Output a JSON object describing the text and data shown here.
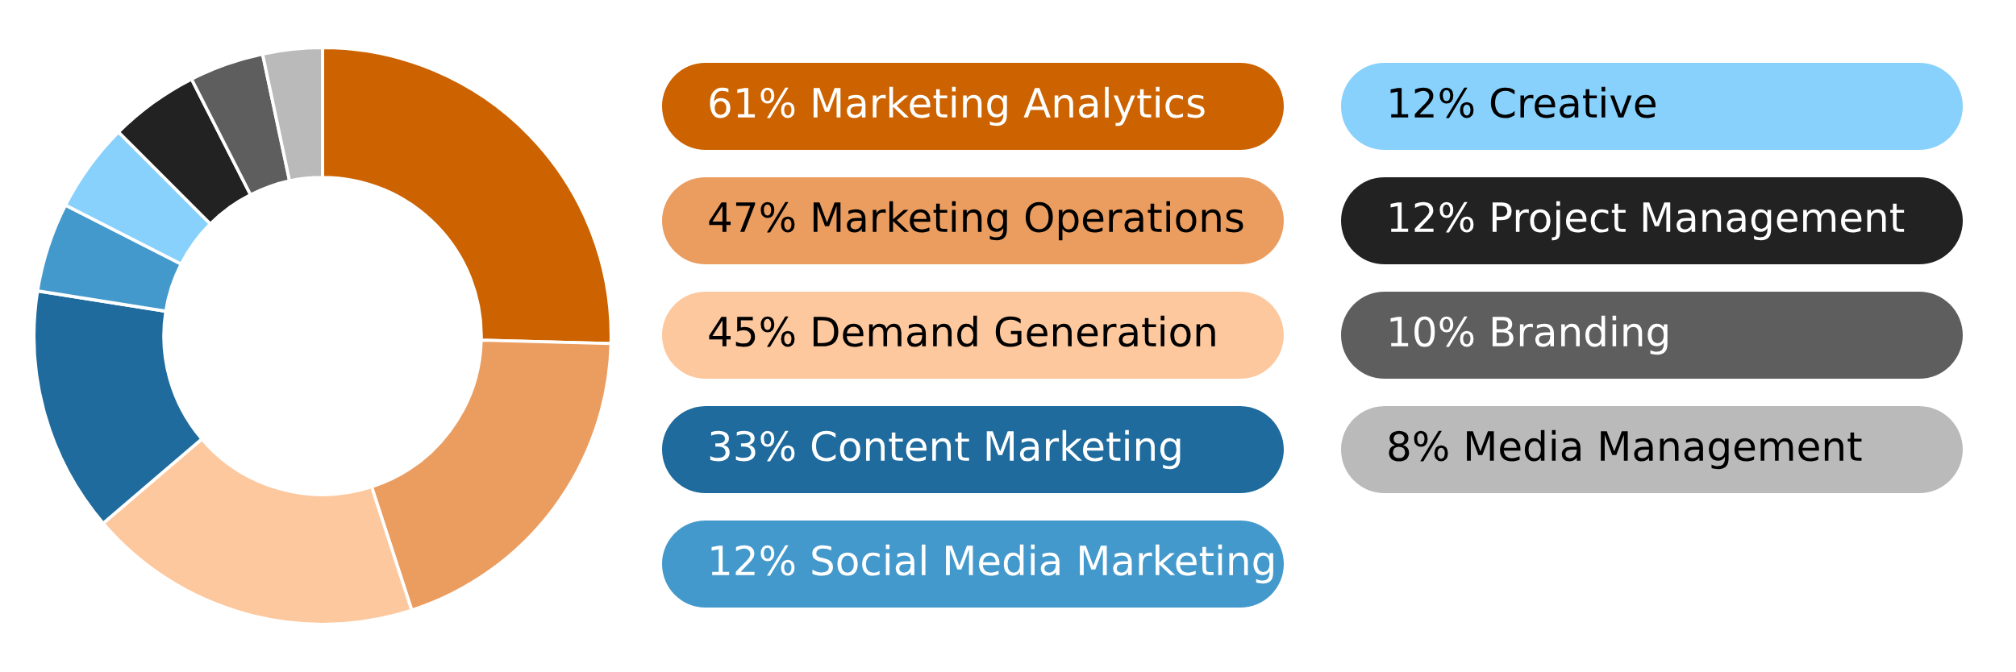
{
  "chart_data": {
    "type": "donut",
    "categories": [
      "Marketing Analytics",
      "Marketing Operations",
      "Demand Generation",
      "Content Marketing",
      "Social Media Marketing",
      "Creative",
      "Project Management",
      "Branding",
      "Media Management"
    ],
    "values": [
      61,
      47,
      45,
      33,
      12,
      12,
      12,
      10,
      8
    ],
    "value_labels": [
      "61%",
      "47%",
      "45%",
      "33%",
      "12%",
      "12%",
      "12%",
      "10%",
      "8%"
    ],
    "colors": [
      "#cc6300",
      "#eb9d60",
      "#fdc89e",
      "#1f6b9e",
      "#4499cc",
      "#87d1fc",
      "#222222",
      "#5e5e5e",
      "#bababa"
    ],
    "legend": "right"
  }
}
